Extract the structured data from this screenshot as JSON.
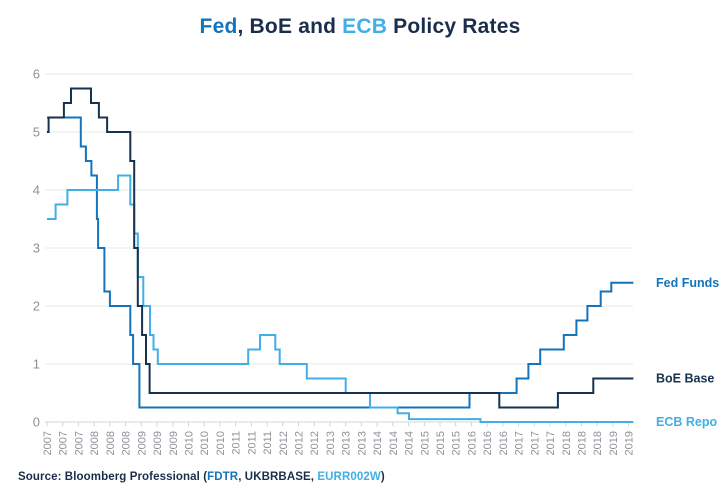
{
  "title": {
    "segments": [
      {
        "text": "Fed",
        "color": "fed_blue"
      },
      {
        "text": ", BoE and ",
        "color": "dark_navy"
      },
      {
        "text": "ECB",
        "color": "ecb_blue"
      },
      {
        "text": " Policy Rates",
        "color": "dark_navy"
      }
    ]
  },
  "source": {
    "segments": [
      {
        "text": "Source: Bloomberg Professional (",
        "color": "dark_navy"
      },
      {
        "text": "FDTR",
        "color": "fed_blue"
      },
      {
        "text": ", UKBRBASE, ",
        "color": "dark_navy"
      },
      {
        "text": "EURR002W",
        "color": "ecb_blue"
      },
      {
        "text": ")",
        "color": "dark_navy"
      }
    ]
  },
  "colors": {
    "fed_blue": "#1374bc",
    "ecb_blue": "#41afe6",
    "dark_navy": "#1a2e4b",
    "boe_line": "#17324e",
    "grid": "#e8e8e8",
    "axis": "#d4d4d4",
    "tick_label": "#8d9298"
  },
  "chart_data": {
    "type": "line",
    "step": true,
    "title": "Fed, BoE and ECB Policy Rates",
    "grid": "horizontal",
    "legend_position": "right-end-labels",
    "y_axis": {
      "label": "",
      "min": 0,
      "max": 6,
      "ticks": [
        0,
        1,
        2,
        3,
        4,
        5,
        6
      ]
    },
    "x_axis": {
      "unit": "months since Jan 2007",
      "tick_interval_months": 4,
      "end_month": 149.2,
      "tick_labels": [
        "2007",
        "2007",
        "2007",
        "2008",
        "2008",
        "2008",
        "2009",
        "2009",
        "2009",
        "2010",
        "2010",
        "2010",
        "2011",
        "2011",
        "2011",
        "2012",
        "2012",
        "2012",
        "2013",
        "2013",
        "2013",
        "2014",
        "2014",
        "2014",
        "2015",
        "2015",
        "2015",
        "2016",
        "2016",
        "2016",
        "2017",
        "2017",
        "2017",
        "2018",
        "2018",
        "2018",
        "2019",
        "2019"
      ]
    },
    "series": [
      {
        "id": "fed-funds",
        "name": "Fed Funds",
        "color_key": "fed_blue",
        "points": [
          [
            0,
            5.25
          ],
          [
            8.6,
            4.75
          ],
          [
            9.9,
            4.5
          ],
          [
            11.3,
            4.25
          ],
          [
            12.7,
            3.5
          ],
          [
            13.0,
            3.0
          ],
          [
            14.6,
            2.25
          ],
          [
            16.0,
            2.0
          ],
          [
            21.2,
            1.5
          ],
          [
            21.9,
            1.0
          ],
          [
            23.5,
            0.25
          ],
          [
            107.5,
            0.5
          ],
          [
            119.5,
            0.75
          ],
          [
            122.5,
            1.0
          ],
          [
            125.5,
            1.25
          ],
          [
            131.5,
            1.5
          ],
          [
            134.7,
            1.75
          ],
          [
            137.5,
            2.0
          ],
          [
            140.9,
            2.25
          ],
          [
            143.6,
            2.4
          ]
        ]
      },
      {
        "id": "ecb-repo",
        "name": "ECB Repo",
        "color_key": "ecb_blue",
        "points": [
          [
            0,
            3.5
          ],
          [
            2.2,
            3.75
          ],
          [
            5.2,
            4.0
          ],
          [
            18.1,
            4.25
          ],
          [
            21.2,
            3.75
          ],
          [
            22.2,
            3.25
          ],
          [
            23.1,
            2.5
          ],
          [
            24.5,
            2.0
          ],
          [
            26.2,
            1.5
          ],
          [
            27.1,
            1.25
          ],
          [
            28.2,
            1.0
          ],
          [
            51.2,
            1.25
          ],
          [
            54.2,
            1.5
          ],
          [
            58.1,
            1.25
          ],
          [
            59.2,
            1.0
          ],
          [
            66.1,
            0.75
          ],
          [
            76.0,
            0.5
          ],
          [
            82.2,
            0.25
          ],
          [
            89.2,
            0.15
          ],
          [
            92.1,
            0.05
          ],
          [
            110.3,
            0.0
          ]
        ]
      },
      {
        "id": "boe-base",
        "name": "BoE Base",
        "color_key": "boe_line",
        "points": [
          [
            0,
            5.0
          ],
          [
            0.4,
            5.25
          ],
          [
            4.3,
            5.5
          ],
          [
            6.1,
            5.75
          ],
          [
            11.2,
            5.5
          ],
          [
            13.2,
            5.25
          ],
          [
            15.3,
            5.0
          ],
          [
            21.2,
            4.5
          ],
          [
            22.2,
            3.0
          ],
          [
            23.1,
            2.0
          ],
          [
            24.2,
            1.5
          ],
          [
            25.2,
            1.0
          ],
          [
            26.1,
            0.5
          ],
          [
            115.1,
            0.25
          ],
          [
            130.0,
            0.5
          ],
          [
            139.0,
            0.75
          ]
        ]
      }
    ]
  }
}
